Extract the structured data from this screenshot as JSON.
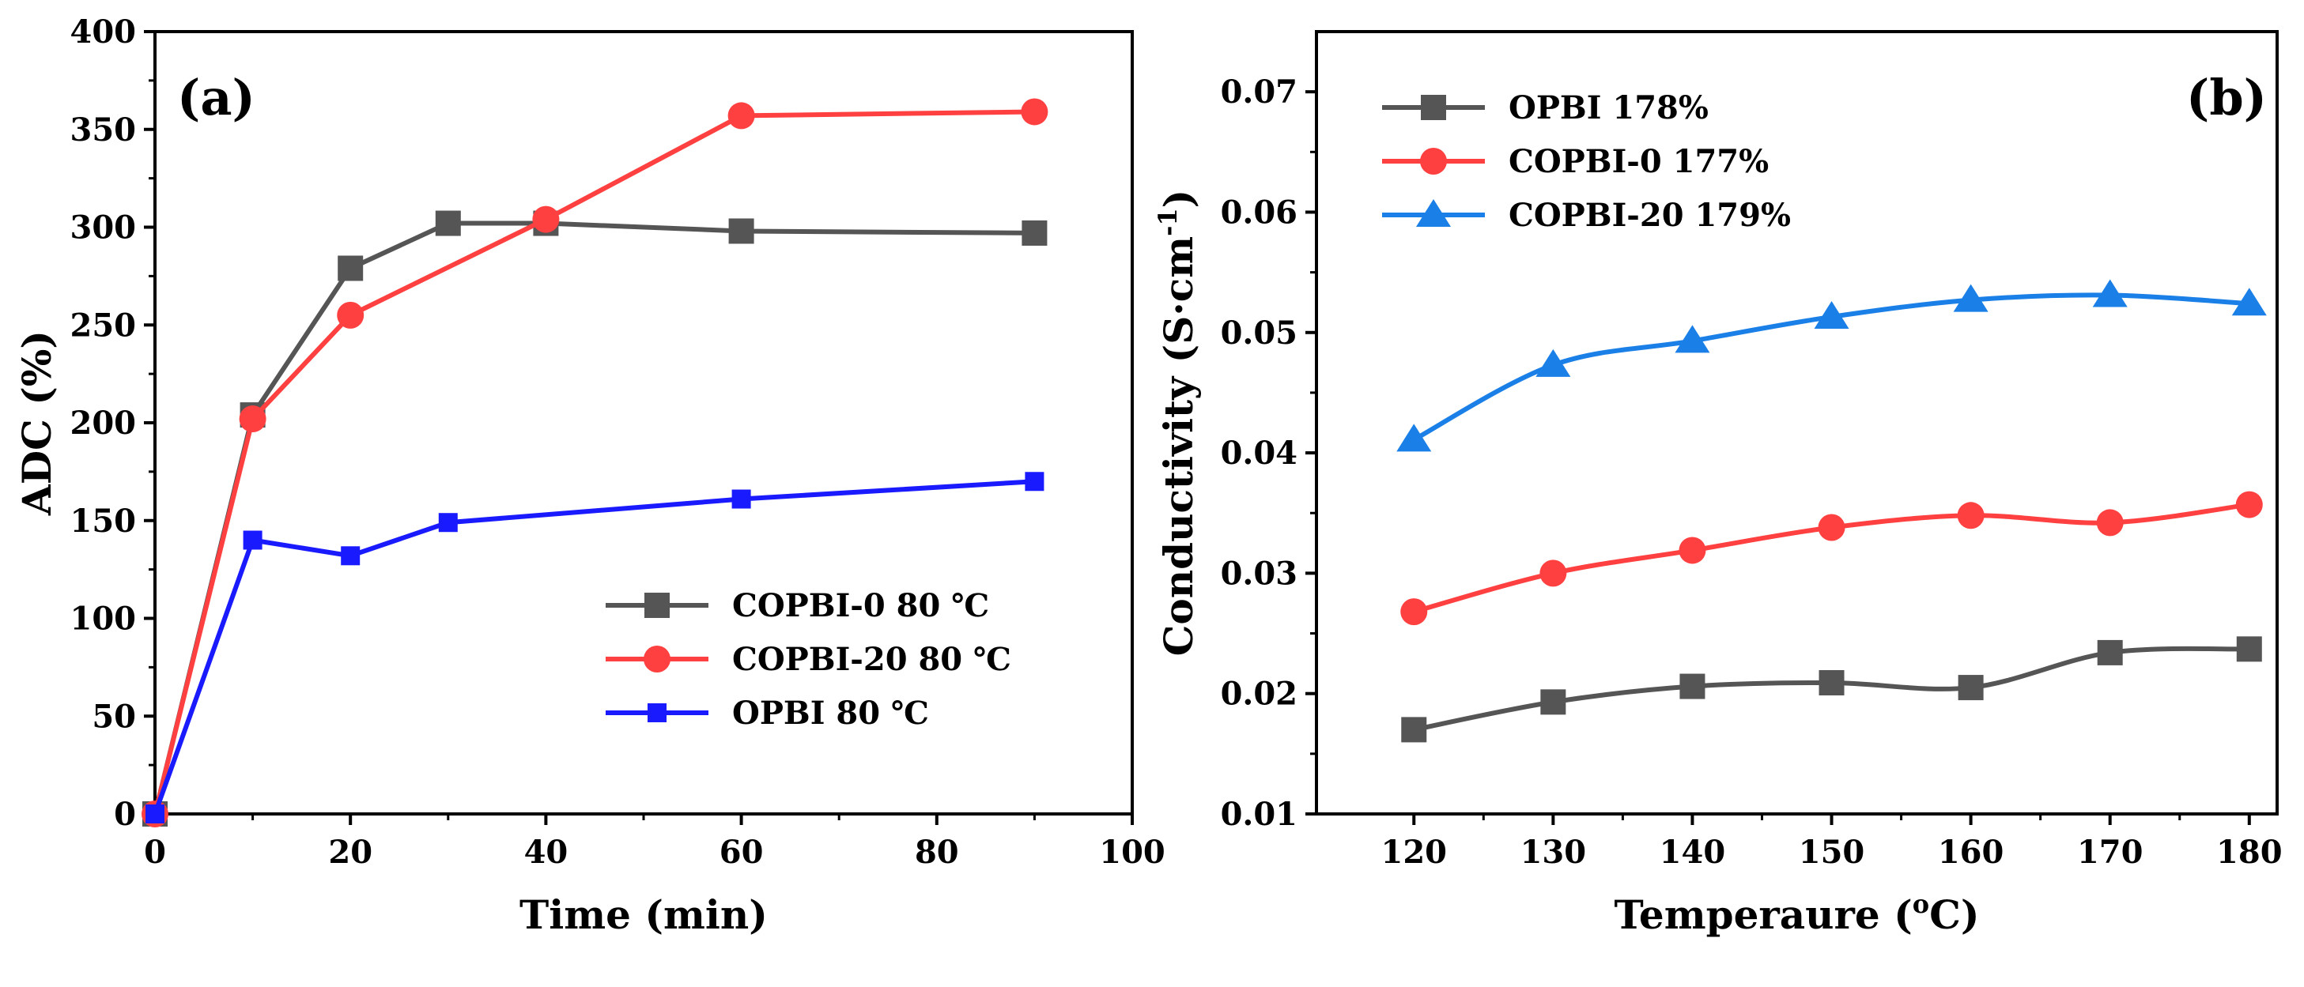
{
  "chart_data": [
    {
      "type": "line",
      "panel_label": "(a)",
      "xlabel": "Time (min)",
      "ylabel": "ADC (%)",
      "xlim": [
        0,
        100
      ],
      "ylim": [
        0,
        400
      ],
      "x_ticks": [
        "0",
        "20",
        "40",
        "60",
        "80",
        "100"
      ],
      "y_ticks": [
        "0",
        "50",
        "100",
        "150",
        "200",
        "250",
        "300",
        "350",
        "400"
      ],
      "legend_position": "bottom-right",
      "series": [
        {
          "name": "COPBI-0 80 ℃",
          "color": "#555555",
          "marker": "square",
          "x": [
            0,
            10,
            20,
            30,
            40,
            60,
            90
          ],
          "values": [
            0,
            204,
            279,
            302,
            302,
            298,
            297
          ]
        },
        {
          "name": "COPBI-20 80 ℃",
          "color": "#ff4040",
          "marker": "circle",
          "x": [
            0,
            10,
            20,
            40,
            60,
            90
          ],
          "values": [
            0,
            202,
            255,
            304,
            357,
            359
          ]
        },
        {
          "name": "OPBI  80 ℃",
          "color": "#1a1aff",
          "marker": "square-small",
          "x": [
            0,
            10,
            20,
            30,
            60,
            90
          ],
          "values": [
            0,
            140,
            132,
            149,
            161,
            170
          ]
        }
      ]
    },
    {
      "type": "line",
      "panel_label": "(b)",
      "xlabel": "Temperaure (°C)",
      "xlabel_parts": [
        "Temperaure (",
        "o",
        "C)"
      ],
      "ylabel": "Conductivity (S·cm-1)",
      "ylabel_parts": [
        "Conductivity (S·cm",
        "-1",
        ")"
      ],
      "xlim": [
        113,
        182
      ],
      "ylim": [
        0.01,
        0.075
      ],
      "x_ticks": [
        "120",
        "130",
        "140",
        "150",
        "160",
        "170",
        "180"
      ],
      "y_ticks": [
        "0.01",
        "0.02",
        "0.03",
        "0.04",
        "0.05",
        "0.06",
        "0.07"
      ],
      "legend_position": "top-left",
      "categories": [
        120,
        130,
        140,
        150,
        160,
        170,
        180
      ],
      "series": [
        {
          "name": "OPBI 178%",
          "color": "#555555",
          "marker": "square",
          "values": [
            0.017,
            0.0193,
            0.0206,
            0.0209,
            0.0205,
            0.0234,
            0.0237
          ]
        },
        {
          "name": "COPBI-0 177%",
          "color": "#ff4040",
          "marker": "circle",
          "values": [
            0.0268,
            0.03,
            0.0319,
            0.0338,
            0.0348,
            0.0342,
            0.0357
          ]
        },
        {
          "name": "COPBI-20 179%",
          "color": "#1a7fe6",
          "marker": "triangle",
          "values": [
            0.0411,
            0.0473,
            0.0493,
            0.0513,
            0.0527,
            0.0531,
            0.0524
          ]
        }
      ]
    }
  ]
}
